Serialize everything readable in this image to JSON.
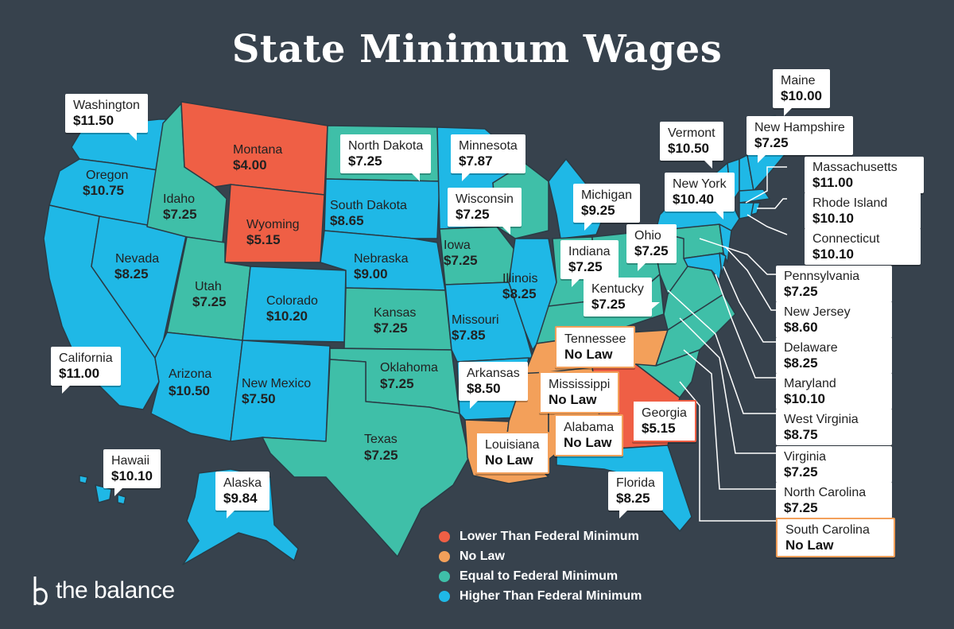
{
  "title": "State Minimum Wages",
  "colors": {
    "background": "#37424d",
    "lower": "#ef5f45",
    "no_law": "#f3a05a",
    "equal": "#3fbfa8",
    "higher": "#1fb8e6",
    "border": "#2a3b45"
  },
  "legend": [
    {
      "label": "Lower Than Federal Minimum",
      "color": "#ef5f45"
    },
    {
      "label": "No Law",
      "color": "#f3a05a"
    },
    {
      "label": "Equal to Federal Minimum",
      "color": "#3fbfa8"
    },
    {
      "label": "Higher Than Federal Minimum",
      "color": "#1fb8e6"
    }
  ],
  "states": {
    "washington": {
      "name": "Washington",
      "wage": "$11.50"
    },
    "oregon": {
      "name": "Oregon",
      "wage": "$10.75"
    },
    "california": {
      "name": "California",
      "wage": "$11.00"
    },
    "nevada": {
      "name": "Nevada",
      "wage": "$8.25"
    },
    "idaho": {
      "name": "Idaho",
      "wage": "$7.25"
    },
    "montana": {
      "name": "Montana",
      "wage": "$4.00"
    },
    "wyoming": {
      "name": "Wyoming",
      "wage": "$5.15"
    },
    "utah": {
      "name": "Utah",
      "wage": "$7.25"
    },
    "colorado": {
      "name": "Colorado",
      "wage": "$10.20"
    },
    "arizona": {
      "name": "Arizona",
      "wage": "$10.50"
    },
    "new_mexico": {
      "name": "New Mexico",
      "wage": "$7.50"
    },
    "north_dakota": {
      "name": "North Dakota",
      "wage": "$7.25"
    },
    "south_dakota": {
      "name": "South Dakota",
      "wage": "$8.65"
    },
    "nebraska": {
      "name": "Nebraska",
      "wage": "$9.00"
    },
    "kansas": {
      "name": "Kansas",
      "wage": "$7.25"
    },
    "oklahoma": {
      "name": "Oklahoma",
      "wage": "$7.25"
    },
    "texas": {
      "name": "Texas",
      "wage": "$7.25"
    },
    "minnesota": {
      "name": "Minnesota",
      "wage": "$7.87"
    },
    "iowa": {
      "name": "Iowa",
      "wage": "$7.25"
    },
    "missouri": {
      "name": "Missouri",
      "wage": "$7.85"
    },
    "arkansas": {
      "name": "Arkansas",
      "wage": "$8.50"
    },
    "louisiana": {
      "name": "Louisiana",
      "wage": "No Law"
    },
    "wisconsin": {
      "name": "Wisconsin",
      "wage": "$7.25"
    },
    "illinois": {
      "name": "Illinois",
      "wage": "$8.25"
    },
    "michigan": {
      "name": "Michigan",
      "wage": "$9.25"
    },
    "indiana": {
      "name": "Indiana",
      "wage": "$7.25"
    },
    "ohio": {
      "name": "Ohio",
      "wage": "$7.25"
    },
    "kentucky": {
      "name": "Kentucky",
      "wage": "$7.25"
    },
    "tennessee": {
      "name": "Tennessee",
      "wage": "No Law"
    },
    "mississippi": {
      "name": "Mississippi",
      "wage": "No Law"
    },
    "alabama": {
      "name": "Alabama",
      "wage": "No Law"
    },
    "georgia": {
      "name": "Georgia",
      "wage": "$5.15"
    },
    "florida": {
      "name": "Florida",
      "wage": "$8.25"
    },
    "hawaii": {
      "name": "Hawaii",
      "wage": "$10.10"
    },
    "alaska": {
      "name": "Alaska",
      "wage": "$9.84"
    },
    "maine": {
      "name": "Maine",
      "wage": "$10.00"
    },
    "vermont": {
      "name": "Vermont",
      "wage": "$10.50"
    },
    "new_hampshire": {
      "name": "New Hampshire",
      "wage": "$7.25"
    },
    "new_york": {
      "name": "New York",
      "wage": "$10.40"
    },
    "massachusetts": {
      "name": "Massachusetts",
      "wage": "$11.00"
    },
    "rhode_island": {
      "name": "Rhode Island",
      "wage": "$10.10"
    },
    "connecticut": {
      "name": "Connecticut",
      "wage": "$10.10"
    },
    "pennsylvania": {
      "name": "Pennsylvania",
      "wage": "$7.25"
    },
    "new_jersey": {
      "name": "New Jersey",
      "wage": "$8.60"
    },
    "delaware": {
      "name": "Delaware",
      "wage": "$8.25"
    },
    "maryland": {
      "name": "Maryland",
      "wage": "$10.10"
    },
    "west_virginia": {
      "name": "West Virginia",
      "wage": "$8.75"
    },
    "virginia": {
      "name": "Virginia",
      "wage": "$7.25"
    },
    "north_carolina": {
      "name": "North Carolina",
      "wage": "$7.25"
    },
    "south_carolina": {
      "name": "South Carolina",
      "wage": "No Law"
    }
  },
  "brand": {
    "name": "the balance"
  }
}
